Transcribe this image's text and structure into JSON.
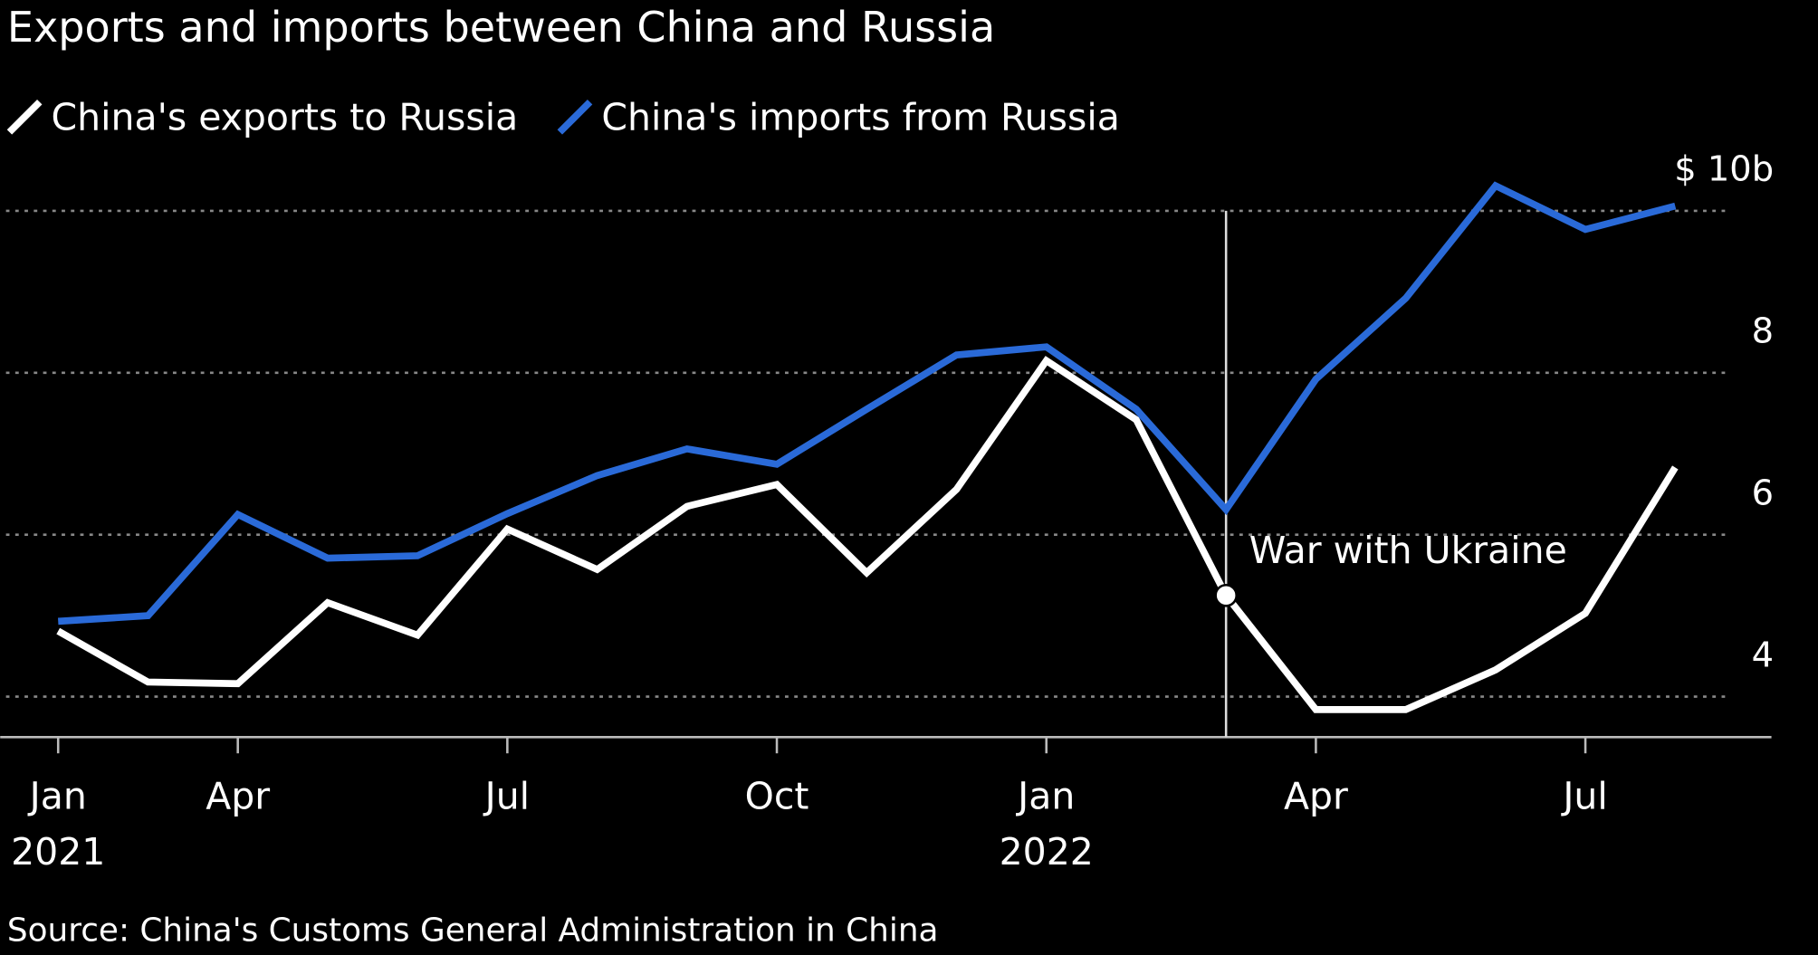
{
  "chart_data": {
    "type": "line",
    "title": "Exports and imports between China and Russia",
    "source": "Source: China's Customs General Administration in China",
    "x": [
      "2021-01",
      "2021-03",
      "2021-04",
      "2021-05",
      "2021-06",
      "2021-07",
      "2021-08",
      "2021-09",
      "2021-10",
      "2021-11",
      "2021-12",
      "2022-01",
      "2022-02",
      "2022-03",
      "2022-04",
      "2022-05",
      "2022-06",
      "2022-07",
      "2022-08"
    ],
    "series": [
      {
        "name": "China's exports to Russia",
        "color": "#ffffff",
        "values": [
          4.81,
          4.18,
          4.16,
          5.16,
          4.76,
          6.07,
          5.57,
          6.35,
          6.62,
          5.53,
          6.56,
          8.15,
          7.42,
          5.25,
          3.84,
          3.84,
          4.33,
          5.03,
          6.83
        ]
      },
      {
        "name": "China's imports from Russia",
        "color": "#2a6ad8",
        "values": [
          4.93,
          5.0,
          6.25,
          5.71,
          5.74,
          6.26,
          6.73,
          7.06,
          6.87,
          7.55,
          8.22,
          8.32,
          7.55,
          6.31,
          7.92,
          8.92,
          10.31,
          9.77,
          10.06
        ]
      }
    ],
    "ylim": [
      3.5,
      10.6
    ],
    "yticks": [
      4,
      6,
      8,
      {
        "value": 10,
        "label": "$ 10b"
      }
    ],
    "xticks": [
      {
        "value": "2021-01",
        "label": "Jan",
        "year": "2021"
      },
      {
        "value": "2021-04",
        "label": "Apr"
      },
      {
        "value": "2021-07",
        "label": "Jul"
      },
      {
        "value": "2021-10",
        "label": "Oct"
      },
      {
        "value": "2022-01",
        "label": "Jan",
        "year": "2022"
      },
      {
        "value": "2022-04",
        "label": "Apr"
      },
      {
        "value": "2022-07",
        "label": "Jul"
      }
    ],
    "grid": true,
    "annotation": {
      "x": "2022-03",
      "text": "War with Ukraine",
      "series": 0
    }
  }
}
